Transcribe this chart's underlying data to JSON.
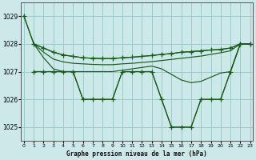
{
  "title": "Graphe pression niveau de la mer (hPa)",
  "bg_color": "#cce8e8",
  "grid_color": "#99cccc",
  "line_color": "#1a5c1a",
  "ylim": [
    1024.5,
    1029.5
  ],
  "yticks": [
    1025,
    1026,
    1027,
    1028,
    1029
  ],
  "xlim": [
    -0.3,
    23.3
  ],
  "xticks": [
    0,
    1,
    2,
    3,
    4,
    5,
    6,
    7,
    8,
    9,
    10,
    11,
    12,
    13,
    14,
    15,
    16,
    17,
    18,
    19,
    20,
    21,
    22,
    23
  ],
  "lines": [
    {
      "x": [
        0,
        1,
        2,
        3,
        4,
        5,
        6,
        7,
        8,
        9,
        10,
        11,
        12,
        13,
        14,
        15,
        16,
        17,
        18,
        19,
        20,
        21,
        22,
        23
      ],
      "y": [
        1029,
        1028,
        1027.85,
        1027.7,
        1027.6,
        1027.55,
        1027.5,
        1027.48,
        1027.47,
        1027.47,
        1027.5,
        1027.52,
        1027.55,
        1027.58,
        1027.62,
        1027.65,
        1027.7,
        1027.72,
        1027.75,
        1027.78,
        1027.8,
        1027.85,
        1028,
        1028
      ],
      "marker": true,
      "marker_pts": [
        0,
        1,
        22,
        23
      ]
    },
    {
      "x": [
        1,
        2,
        3,
        4,
        5,
        6,
        7,
        8,
        9,
        10,
        11,
        12,
        13,
        14,
        15,
        16,
        17,
        18,
        19,
        20,
        21,
        22,
        23
      ],
      "y": [
        1028,
        1027.7,
        1027.45,
        1027.35,
        1027.3,
        1027.28,
        1027.26,
        1027.25,
        1027.25,
        1027.28,
        1027.3,
        1027.33,
        1027.36,
        1027.4,
        1027.44,
        1027.48,
        1027.52,
        1027.56,
        1027.62,
        1027.68,
        1027.75,
        1028,
        1028
      ],
      "marker": false,
      "marker_pts": []
    },
    {
      "x": [
        1,
        2,
        3,
        4,
        5,
        6,
        7,
        8,
        9,
        10,
        11,
        12,
        13,
        14,
        15,
        16,
        17,
        18,
        19,
        20,
        21,
        22,
        23
      ],
      "y": [
        1028,
        1027.5,
        1027.1,
        1027.0,
        1027.0,
        1027.0,
        1027.0,
        1027.0,
        1027.0,
        1027.05,
        1027.1,
        1027.15,
        1027.2,
        1027.1,
        1026.9,
        1026.7,
        1026.6,
        1026.65,
        1026.8,
        1026.95,
        1027.0,
        1028,
        1028
      ],
      "marker": false,
      "marker_pts": []
    },
    {
      "x": [
        1,
        2,
        3,
        4,
        5,
        6,
        7,
        8,
        9,
        10,
        11,
        12,
        13,
        14,
        15,
        16,
        17,
        18,
        19,
        20,
        21,
        22,
        23
      ],
      "y": [
        1027,
        1027,
        1027,
        1027,
        1027,
        1026,
        1026,
        1026,
        1026,
        1027,
        1027,
        1027,
        1027,
        1026,
        1025,
        1025,
        1025,
        1026,
        1026,
        1026,
        1027,
        1028,
        1028
      ],
      "marker": true,
      "marker_pts": [
        0,
        1,
        2,
        3,
        4,
        5,
        6,
        7,
        8,
        9,
        10,
        11,
        12,
        13,
        14,
        15,
        16,
        17,
        18,
        19,
        20,
        21,
        22
      ]
    }
  ]
}
